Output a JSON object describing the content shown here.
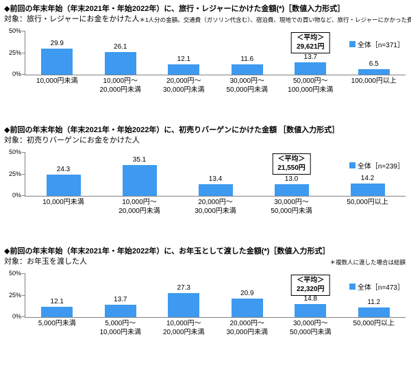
{
  "colors": {
    "bar": "#3D9AF0",
    "axis": "#808080",
    "text": "#000000",
    "average_box_border": "#000000"
  },
  "chart_data": [
    {
      "type": "bar",
      "title": "◆前回の年末年始（年末2021年・年始2022年）に、旅行・レジャーにかけた金額(*)［数値入力形式］",
      "target": "対象：旅行・レジャーにお金をかけた人",
      "note": "＊1人分の金額。交通費（ガソリン代含む）、宿泊費、現地での買い物など、旅行・レジャーにかかった費用すべて",
      "legend": "全体［n=371］",
      "average_label": "＜平均＞",
      "average_value": "29,621円",
      "average_box_index": 4,
      "ylim": [
        0,
        50
      ],
      "yticks": [
        "50%",
        "25%",
        "0%"
      ],
      "grid": false,
      "legend_position": "top-right",
      "categories": [
        "10,000円未満",
        "10,000円～\n20,000円未満",
        "20,000円～\n30,000円未満",
        "30,000円～\n50,000円未満",
        "50,000円～\n100,000円未満",
        "100,000円以上"
      ],
      "values": [
        29.9,
        26.1,
        12.1,
        11.6,
        13.7,
        6.5
      ]
    },
    {
      "type": "bar",
      "title": "◆前回の年末年始（年末2021年・年始2022年）に、初売りバーゲンにかけた金額 ［数値入力形式］",
      "target": "対象：初売りバーゲンにお金をかけた人",
      "note": "",
      "legend": "全体［n=239］",
      "average_label": "＜平均＞",
      "average_value": "21,550円",
      "average_box_index": 3,
      "ylim": [
        0,
        50
      ],
      "yticks": [
        "50%",
        "25%",
        "0%"
      ],
      "grid": false,
      "legend_position": "top-right",
      "categories": [
        "10,000円未満",
        "10,000円～\n20,000円未満",
        "20,000円～\n30,000円未満",
        "30,000円～\n50,000円未満",
        "50,000円以上"
      ],
      "values": [
        24.3,
        35.1,
        13.4,
        13.0,
        14.2
      ]
    },
    {
      "type": "bar",
      "title": "◆前回の年末年始（年末2021年・年始2022年）に、お年玉として渡した金額(*)［数値入力形式］",
      "target": "対象：お年玉を渡した人",
      "note": "＊複数人に渡した場合は総額",
      "legend": "全体［n=473］",
      "average_label": "＜平均＞",
      "average_value": "22,320円",
      "average_box_index": 4,
      "ylim": [
        0,
        50
      ],
      "yticks": [
        "50%",
        "25%",
        "0%"
      ],
      "grid": false,
      "legend_position": "top-right",
      "categories": [
        "5,000円未満",
        "5,000円～\n10,000円未満",
        "10,000円～\n20,000円未満",
        "20,000円～\n30,000円未満",
        "30,000円～\n50,000円未満",
        "50,000円以上"
      ],
      "values": [
        12.1,
        13.7,
        27.3,
        20.9,
        14.8,
        11.2
      ]
    }
  ]
}
